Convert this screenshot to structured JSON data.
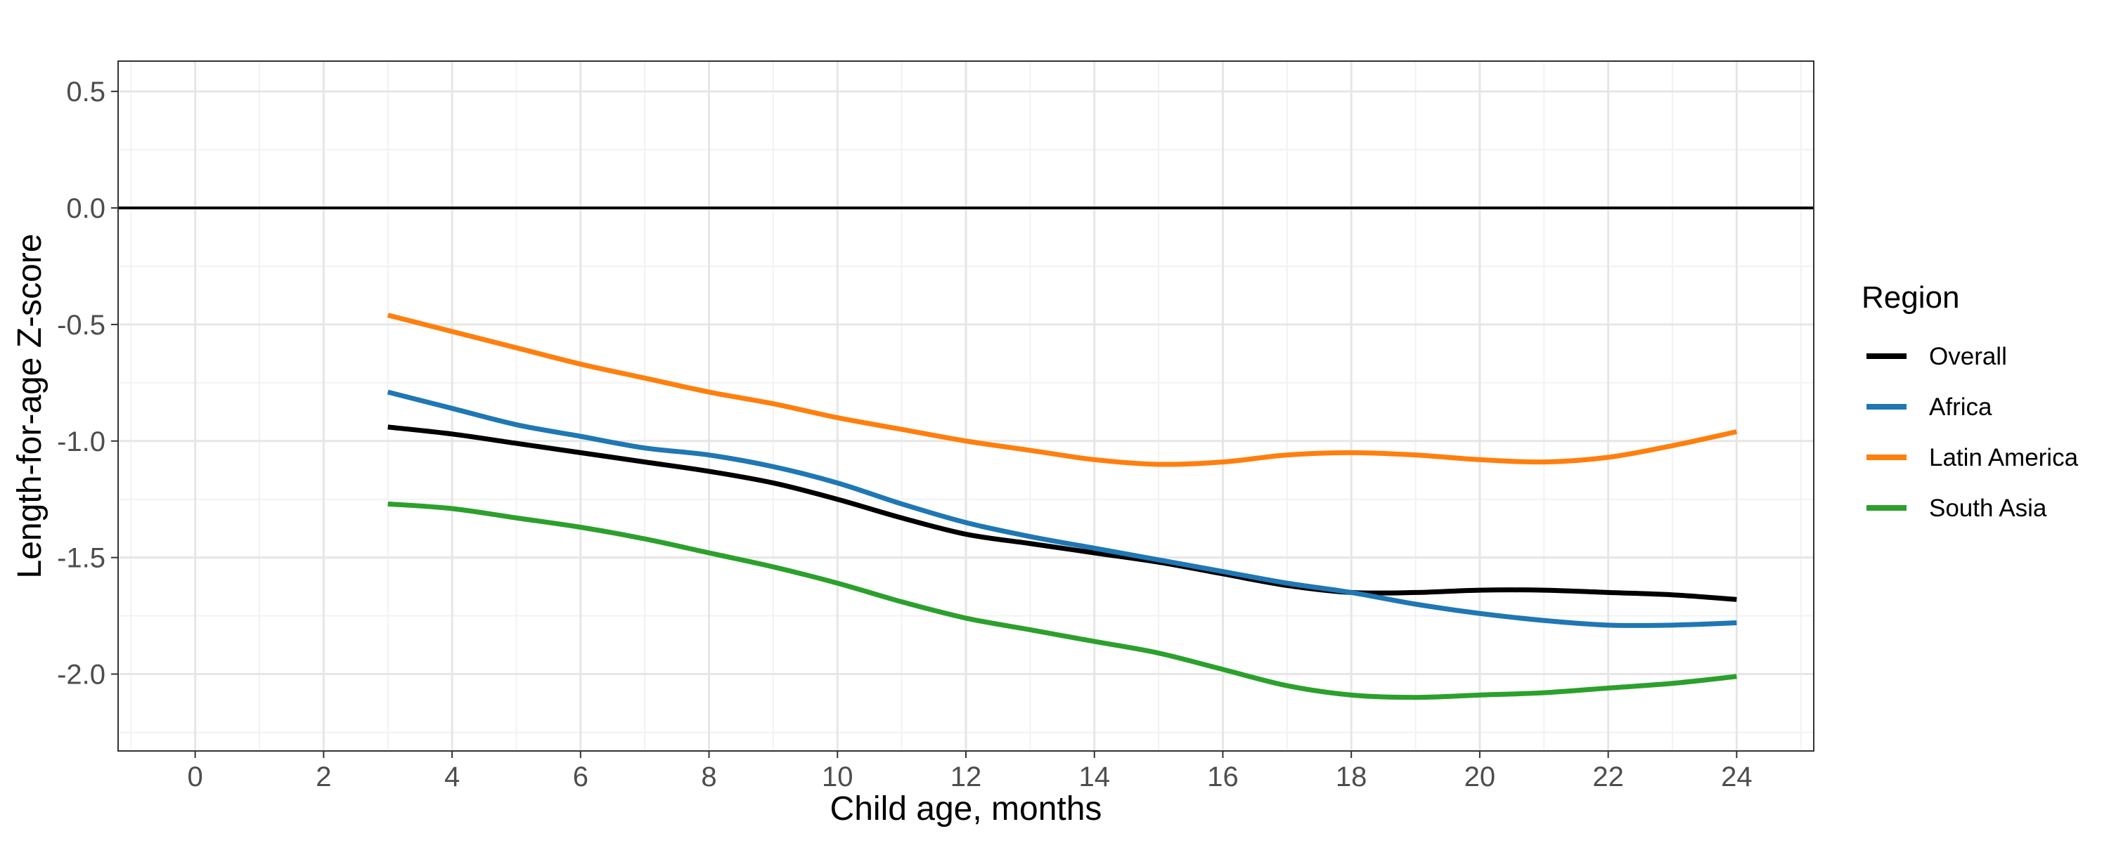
{
  "chart_data": {
    "type": "line",
    "title": "",
    "xlabel": "Child age, months",
    "ylabel": "Length-for-age Z-score",
    "xlim": [
      -1.2,
      25.2
    ],
    "ylim": [
      -2.33,
      0.63
    ],
    "x_ticks": [
      0,
      2,
      4,
      6,
      8,
      10,
      12,
      14,
      16,
      18,
      20,
      22,
      24
    ],
    "x_tick_labels": [
      "0",
      "2",
      "4",
      "6",
      "8",
      "10",
      "12",
      "14",
      "16",
      "18",
      "20",
      "22",
      "24"
    ],
    "y_ticks": [
      0.5,
      0.0,
      -0.5,
      -1.0,
      -1.5,
      -2.0
    ],
    "y_tick_labels": [
      "0.5",
      "0.0",
      "-0.5",
      "-1.0",
      "-1.5",
      "-2.0"
    ],
    "reference_line_y": 0.0,
    "grid": true,
    "legend": {
      "title": "Region",
      "placement": "right"
    },
    "series": [
      {
        "name": "Overall",
        "color": "#000000",
        "x": [
          3,
          4,
          5,
          6,
          7,
          8,
          9,
          10,
          11,
          12,
          13,
          14,
          15,
          16,
          17,
          18,
          19,
          20,
          21,
          22,
          23,
          24
        ],
        "y": [
          -0.94,
          -0.97,
          -1.01,
          -1.05,
          -1.09,
          -1.13,
          -1.18,
          -1.25,
          -1.33,
          -1.4,
          -1.44,
          -1.48,
          -1.52,
          -1.57,
          -1.62,
          -1.65,
          -1.65,
          -1.64,
          -1.64,
          -1.65,
          -1.66,
          -1.68
        ]
      },
      {
        "name": "Africa",
        "color": "#1f77b4",
        "x": [
          3,
          4,
          5,
          6,
          7,
          8,
          9,
          10,
          11,
          12,
          13,
          14,
          15,
          16,
          17,
          18,
          19,
          20,
          21,
          22,
          23,
          24
        ],
        "y": [
          -0.79,
          -0.86,
          -0.93,
          -0.98,
          -1.03,
          -1.06,
          -1.11,
          -1.18,
          -1.27,
          -1.35,
          -1.41,
          -1.46,
          -1.51,
          -1.56,
          -1.61,
          -1.65,
          -1.7,
          -1.74,
          -1.77,
          -1.79,
          -1.79,
          -1.78
        ]
      },
      {
        "name": "Latin America",
        "color": "#ff7f0e",
        "x": [
          3,
          4,
          5,
          6,
          7,
          8,
          9,
          10,
          11,
          12,
          13,
          14,
          15,
          16,
          17,
          18,
          19,
          20,
          21,
          22,
          23,
          24
        ],
        "y": [
          -0.46,
          -0.53,
          -0.6,
          -0.67,
          -0.73,
          -0.79,
          -0.84,
          -0.9,
          -0.95,
          -1.0,
          -1.04,
          -1.08,
          -1.1,
          -1.09,
          -1.06,
          -1.05,
          -1.06,
          -1.08,
          -1.09,
          -1.07,
          -1.02,
          -0.96
        ]
      },
      {
        "name": "South Asia",
        "color": "#2ca02c",
        "x": [
          3,
          4,
          5,
          6,
          7,
          8,
          9,
          10,
          11,
          12,
          13,
          14,
          15,
          16,
          17,
          18,
          19,
          20,
          21,
          22,
          23,
          24
        ],
        "y": [
          -1.27,
          -1.29,
          -1.33,
          -1.37,
          -1.42,
          -1.48,
          -1.54,
          -1.61,
          -1.69,
          -1.76,
          -1.81,
          -1.86,
          -1.91,
          -1.98,
          -2.05,
          -2.09,
          -2.1,
          -2.09,
          -2.08,
          -2.06,
          -2.04,
          -2.01
        ]
      }
    ]
  }
}
